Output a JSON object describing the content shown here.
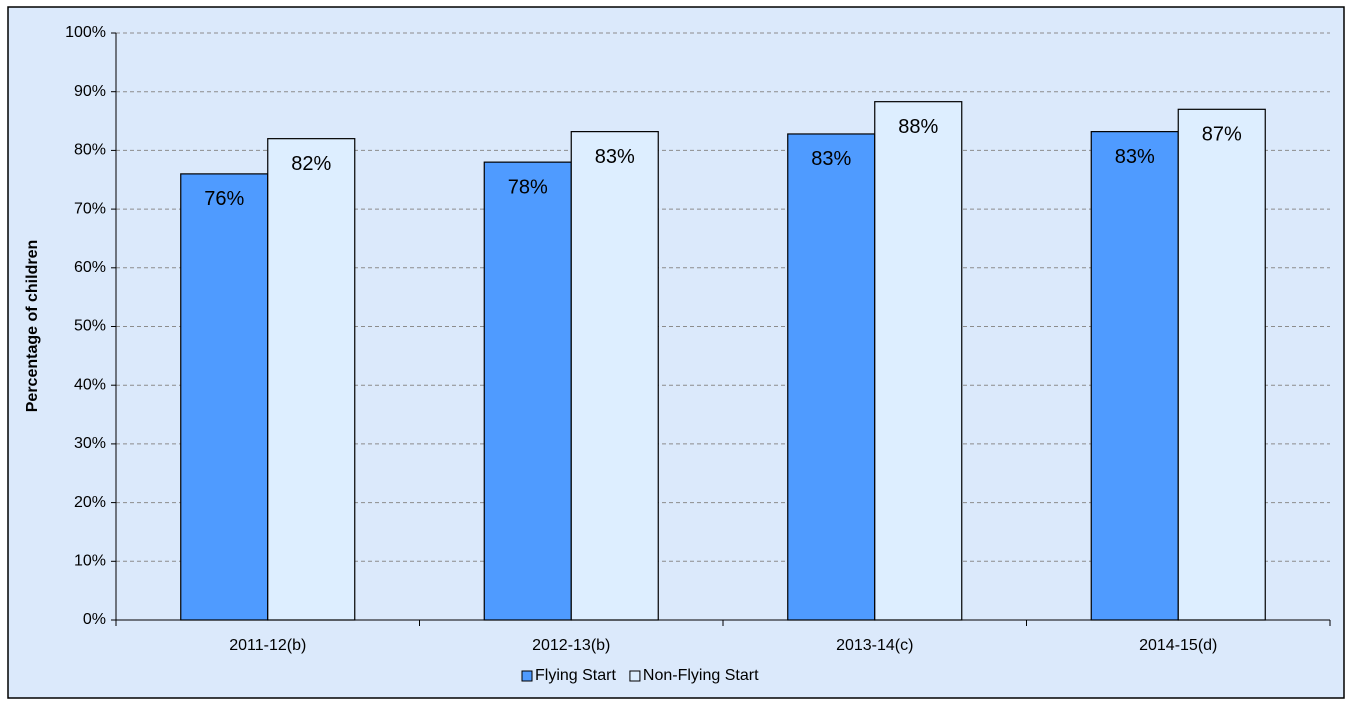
{
  "chart_data": {
    "type": "bar",
    "y_axis_label": "Percentage of children",
    "categories": [
      "2011-12(b)",
      "2012-13(b)",
      "2013-14(c)",
      "2014-15(d)"
    ],
    "series": [
      {
        "name": "Flying Start",
        "color": "#4f9bff",
        "values": [
          76,
          78,
          82.8,
          83.2
        ],
        "value_labels": [
          "76%",
          "78%",
          "83%",
          "83%"
        ]
      },
      {
        "name": "Non-Flying Start",
        "color": "#ddeeff",
        "values": [
          82,
          83.2,
          88.3,
          87
        ],
        "value_labels": [
          "82%",
          "83%",
          "88%",
          "87%"
        ]
      }
    ],
    "ylim": [
      0,
      100
    ],
    "yticks": [
      {
        "value": 0,
        "label": "0%"
      },
      {
        "value": 10,
        "label": "10%"
      },
      {
        "value": 20,
        "label": "20%"
      },
      {
        "value": 30,
        "label": "30%"
      },
      {
        "value": 40,
        "label": "40%"
      },
      {
        "value": 50,
        "label": "50%"
      },
      {
        "value": 60,
        "label": "60%"
      },
      {
        "value": 70,
        "label": "70%"
      },
      {
        "value": 80,
        "label": "80%"
      },
      {
        "value": 90,
        "label": "90%"
      },
      {
        "value": 100,
        "label": "100%"
      }
    ],
    "grid": true,
    "legend": "bottom"
  }
}
